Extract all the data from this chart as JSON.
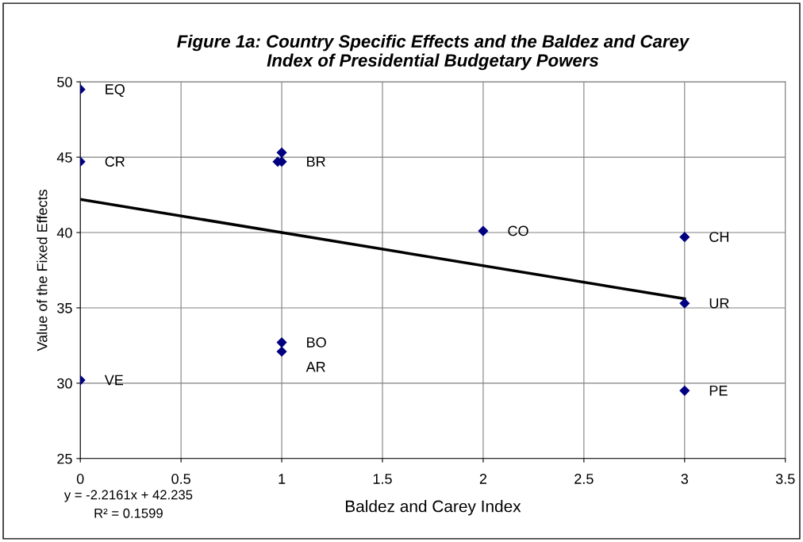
{
  "chart_data": {
    "type": "scatter",
    "title": "Figure 1a: Country Specific Effects and the Baldez and Carey\nIndex of Presidential Budgetary Powers",
    "xlabel": "Baldez and Carey Index",
    "ylabel": "Value of the Fixed Effects",
    "series": [
      {
        "color": "#000080",
        "marker": "diamond",
        "x": [
          0,
          0,
          0.98,
          1,
          1,
          1,
          1,
          2,
          3,
          3,
          3,
          0
        ],
        "values": [
          49.5,
          44.7,
          44.7,
          44.7,
          45.3,
          32.7,
          32.1,
          40.1,
          39.7,
          35.3,
          29.5,
          30.2
        ]
      },
      {
        "type": "line",
        "marker": "none",
        "color": "#000000",
        "x": [
          0,
          3
        ],
        "values": [
          42.2,
          35.6
        ]
      }
    ],
    "annotations": [
      {
        "text": "EQ",
        "x": 0,
        "y": 49.5
      },
      {
        "text": "CR",
        "x": 0,
        "y": 44.7
      },
      {
        "text": "BR",
        "x": 1,
        "y": 44.7
      },
      {
        "text": "BO",
        "x": 1,
        "y": 32.7
      },
      {
        "text": "AR",
        "x": 1,
        "y": 32.1
      },
      {
        "text": "CO",
        "x": 2,
        "y": 40.1
      },
      {
        "text": "CH",
        "x": 3,
        "y": 39.7
      },
      {
        "text": "UR",
        "x": 3,
        "y": 35.3
      },
      {
        "text": "PE",
        "x": 3,
        "y": 29.5
      },
      {
        "text": "VE",
        "x": 0,
        "y": 30.2
      },
      "y = -2.2161x + 42.235",
      "R² = 0.1599"
    ],
    "xlim": [
      0,
      3.5
    ],
    "xticks": [
      0,
      0.5,
      1,
      1.5,
      2,
      2.5,
      3,
      3.5
    ],
    "ylim": [
      25,
      50
    ],
    "yticks": [
      25,
      30,
      35,
      40,
      45,
      50
    ],
    "grid": true
  }
}
